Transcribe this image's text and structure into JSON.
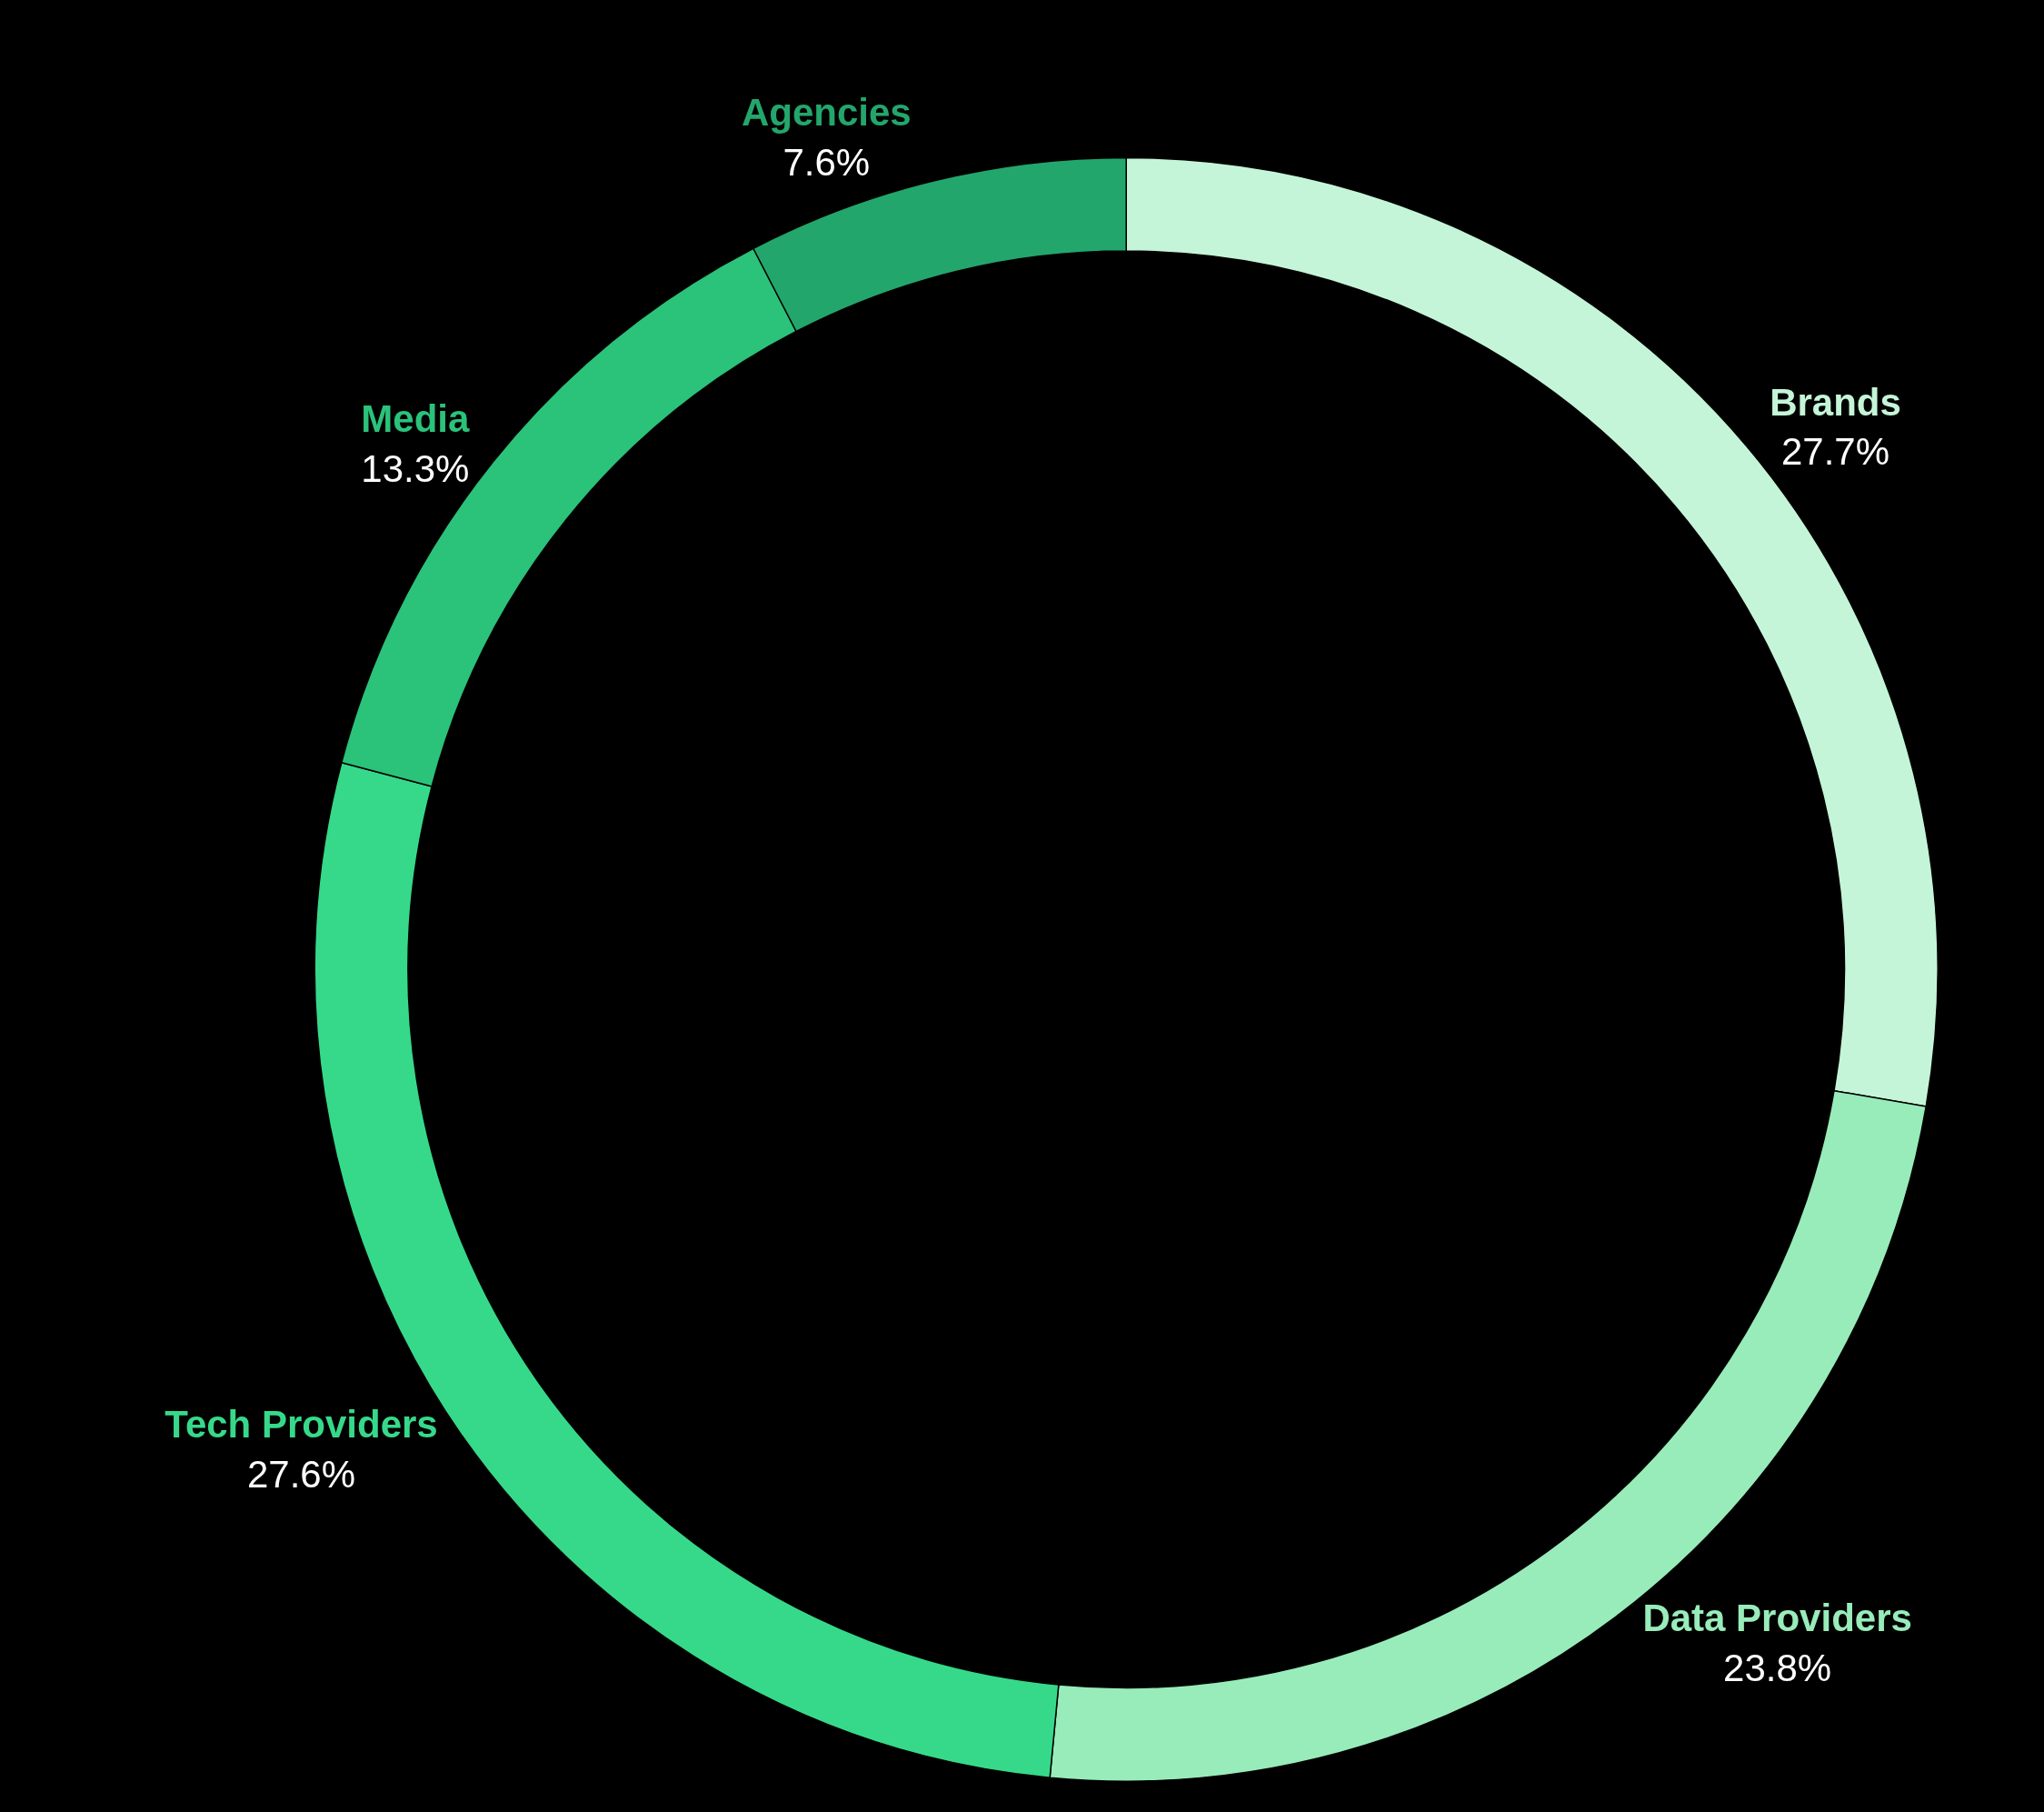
{
  "chart_data": {
    "type": "donut",
    "categories": [
      "Brands",
      "Data Providers",
      "Tech Providers",
      "Media",
      "Agencies"
    ],
    "values": [
      27.7,
      23.8,
      27.6,
      13.3,
      7.6
    ],
    "value_labels": [
      "27.7%",
      "23.8%",
      "27.6%",
      "13.3%",
      "7.6%"
    ],
    "colors": [
      "#c5f5d8",
      "#98ecba",
      "#36d98a",
      "#2bc27a",
      "#23a66c"
    ],
    "legend": false
  }
}
